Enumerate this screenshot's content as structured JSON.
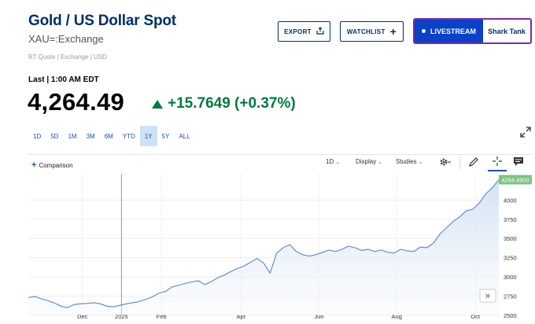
{
  "header": {
    "title": "Gold / US Dollar Spot",
    "subtitle": "XAU=:Exchange",
    "quote_type": "RT Quote | Exchange | USD"
  },
  "actions": {
    "export_label": "EXPORT",
    "watchlist_label": "WATCHLIST",
    "livestream_label": "LIVESTREAM",
    "livestream_show": "Shark Tank"
  },
  "quote": {
    "last_label": "Last | 1:00 AM EDT",
    "price": "4,264.49",
    "change": "+15.7649 (+0.37%)",
    "change_color": "#007a3d"
  },
  "ranges": [
    {
      "label": "1D",
      "active": false
    },
    {
      "label": "5D",
      "active": false
    },
    {
      "label": "1M",
      "active": false
    },
    {
      "label": "3M",
      "active": false
    },
    {
      "label": "6M",
      "active": false
    },
    {
      "label": "YTD",
      "active": false
    },
    {
      "label": "1Y",
      "active": true
    },
    {
      "label": "5Y",
      "active": false
    },
    {
      "label": "ALL",
      "active": false
    }
  ],
  "toolbar": {
    "comparison_label": "Comparison",
    "interval_label": "1D",
    "display_label": "Display",
    "studies_label": "Studies",
    "icons": [
      "gear-icon",
      "pencil-icon",
      "crosshair-icon",
      "comment-icon",
      "expand-icon"
    ]
  },
  "chart_data": {
    "type": "area",
    "x_ticks": [
      "Dec",
      "2025",
      "Feb",
      "Apr",
      "Jun",
      "Aug",
      "Oct"
    ],
    "y_ticks": [
      2500,
      2750,
      3000,
      3250,
      3500,
      3750,
      4000
    ],
    "ylim": [
      2500,
      4300
    ],
    "last_value_label": "4264.4900",
    "last_value": 4264.49,
    "series": [
      {
        "values": [
          2730,
          2745,
          2715,
          2690,
          2660,
          2620,
          2600,
          2640,
          2650,
          2655,
          2665,
          2650,
          2620,
          2610,
          2630,
          2650,
          2665,
          2680,
          2710,
          2740,
          2790,
          2810,
          2870,
          2890,
          2915,
          2935,
          2950,
          2900,
          2940,
          2990,
          3025,
          3070,
          3110,
          3140,
          3190,
          3240,
          3180,
          3050,
          3310,
          3380,
          3420,
          3330,
          3290,
          3270,
          3290,
          3320,
          3350,
          3330,
          3360,
          3400,
          3380,
          3345,
          3360,
          3330,
          3350,
          3320,
          3310,
          3360,
          3340,
          3330,
          3390,
          3380,
          3440,
          3560,
          3640,
          3720,
          3780,
          3860,
          3880,
          3960,
          4080,
          4160,
          4264
        ]
      }
    ],
    "line_color": "#5b86c4",
    "fill_color": "#cfe0f3",
    "badge_color": "#7cc47f",
    "grid": true,
    "interval_vertical_lines": [
      1,
      3,
      5,
      7
    ]
  }
}
